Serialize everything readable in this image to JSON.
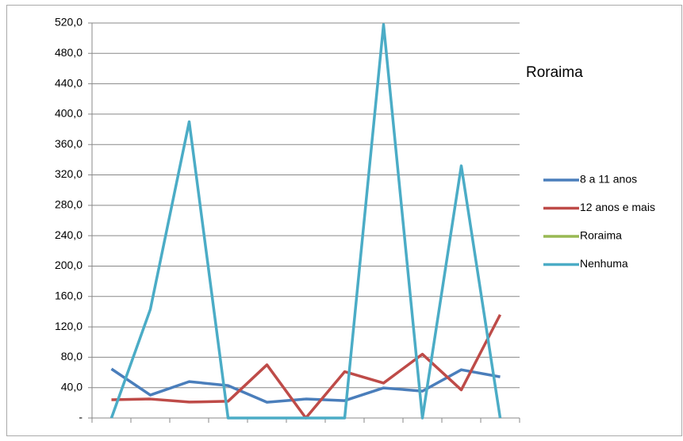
{
  "chart_data": {
    "type": "line",
    "title": "Roraima",
    "categories": [
      null,
      null,
      null,
      null,
      null,
      null,
      null,
      null,
      null,
      null,
      null
    ],
    "series": [
      {
        "name": "8 a 11 anos",
        "color": "#4a7ebb",
        "values": [
          64.6,
          30.2,
          47.9,
          42.7,
          20.8,
          25,
          22.9,
          39.6,
          35.4,
          63.5,
          54.2
        ]
      },
      {
        "name": "12 anos e mais",
        "color": "#be4b48",
        "values": [
          24,
          25,
          21,
          22,
          70,
          0,
          61,
          46,
          84,
          37,
          136
        ]
      },
      {
        "name": "Roraima",
        "color": "#98b954",
        "values": [
          null,
          null,
          null,
          null,
          null,
          null,
          null,
          null,
          null,
          null,
          null
        ]
      },
      {
        "name": "Nenhuma",
        "color": "#4bacc6",
        "values": [
          0,
          143,
          390,
          0,
          0,
          0,
          0,
          518,
          0,
          332,
          0
        ]
      }
    ],
    "ylim": [
      0,
      520
    ],
    "yticks": [
      {
        "value": 0,
        "label": "-"
      },
      {
        "value": 40,
        "label": "40,0"
      },
      {
        "value": 80,
        "label": "80,0"
      },
      {
        "value": 120,
        "label": "120,0"
      },
      {
        "value": 160,
        "label": "160,0"
      },
      {
        "value": 200,
        "label": "200,0"
      },
      {
        "value": 240,
        "label": "240,0"
      },
      {
        "value": 280,
        "label": "280,0"
      },
      {
        "value": 320,
        "label": "320,0"
      },
      {
        "value": 360,
        "label": "360,0"
      },
      {
        "value": 400,
        "label": "400,0"
      },
      {
        "value": 440,
        "label": "440,0"
      },
      {
        "value": 480,
        "label": "480,0"
      },
      {
        "value": 520,
        "label": "520,0"
      }
    ],
    "grid": true,
    "legend": "right"
  }
}
